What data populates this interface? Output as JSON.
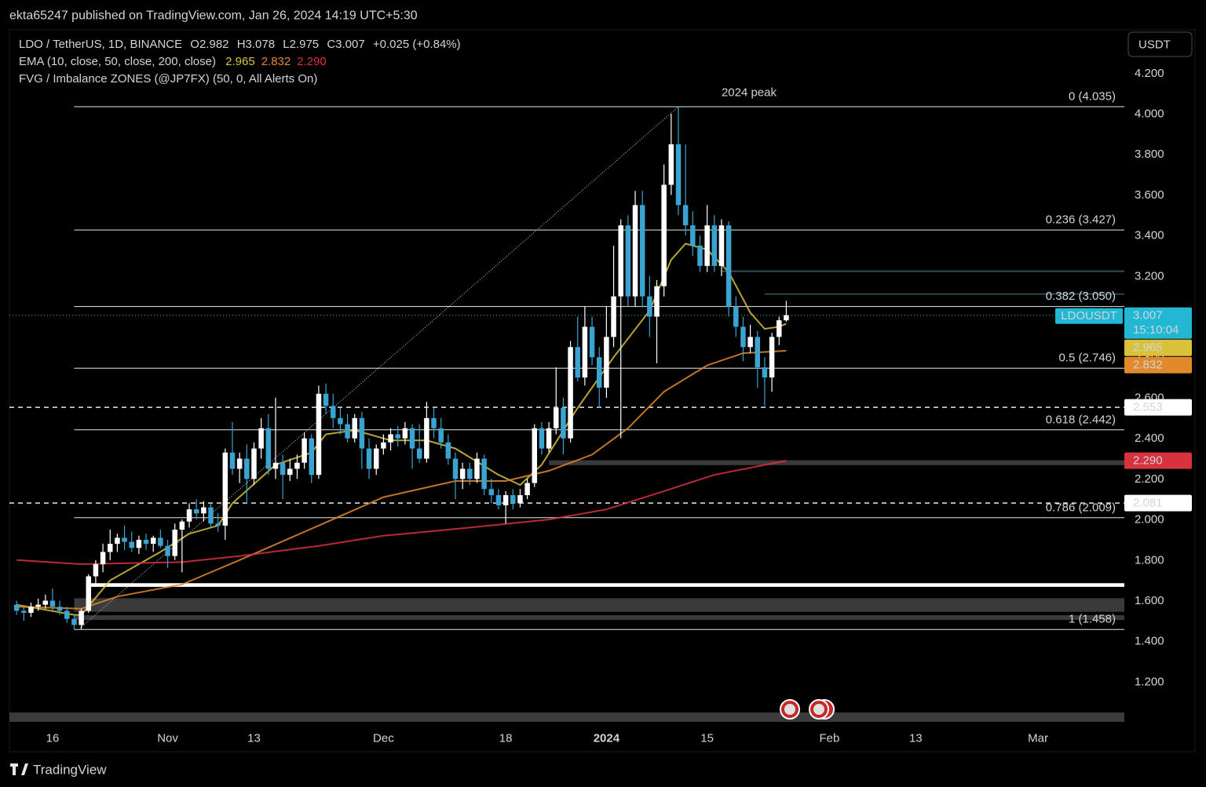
{
  "page": {
    "published": "ekta65247 published on TradingView.com, Jan 26, 2024 14:19 UTC+5:30",
    "currency": "USDT",
    "brand": "TradingView"
  },
  "chart_data": {
    "type": "candlestick",
    "title": "LDO / TetherUS, 1D, BINANCE",
    "ohlc_letters": [
      "O",
      "H",
      "L",
      "C"
    ],
    "change": "+0.025 (+0.84%)",
    "indicators": [
      "EMA (10, close, 50, close, 200, close)",
      "FVG / Imbalance ZONES (@JP7FX) (50, 0, All Alerts On)"
    ],
    "symbol_label": "LDOUSDT",
    "countdown": "15:10:04",
    "up_color": "#ffffff",
    "down_color": "#3ba3d0",
    "price_line_color": "#22b8d4",
    "xlim": [
      "2023-10-10",
      "2024-03-13"
    ],
    "ylim": [
      0.983,
      4.414
    ],
    "grid": false,
    "xticks": [
      {
        "value": "2023-10-16",
        "label": "16"
      },
      {
        "value": "2023-11-01",
        "label": "Nov"
      },
      {
        "value": "2023-11-13",
        "label": "13"
      },
      {
        "value": "2023-12-01",
        "label": "Dec"
      },
      {
        "value": "2023-12-18",
        "label": "18"
      },
      {
        "value": "2024-01-01",
        "label": "2024"
      },
      {
        "value": "2024-01-15",
        "label": "15"
      },
      {
        "value": "2024-02-01",
        "label": "Feb"
      },
      {
        "value": "2024-02-13",
        "label": "13"
      },
      {
        "value": "2024-03-01",
        "label": "Mar"
      }
    ],
    "yticks": [
      {
        "value": 1.2,
        "label": "1.200"
      },
      {
        "value": 1.4,
        "label": "1.400"
      },
      {
        "value": 1.6,
        "label": "1.600"
      },
      {
        "value": 1.8,
        "label": "1.800"
      },
      {
        "value": 2.0,
        "label": "2.000"
      },
      {
        "value": 2.2,
        "label": "2.200"
      },
      {
        "value": 2.4,
        "label": "2.400"
      },
      {
        "value": 2.6,
        "label": "2.600"
      },
      {
        "value": 2.8,
        "label": "2.800"
      },
      {
        "value": 3.0,
        "label": "3.000"
      },
      {
        "value": 3.2,
        "label": "3.200"
      },
      {
        "value": 3.4,
        "label": "3.400"
      },
      {
        "value": 3.6,
        "label": "3.600"
      },
      {
        "value": 3.8,
        "label": "3.800"
      },
      {
        "value": 4.0,
        "label": "4.000"
      },
      {
        "value": 4.2,
        "label": "4.200"
      }
    ],
    "x": [
      "2023-10-11",
      "2023-10-12",
      "2023-10-13",
      "2023-10-14",
      "2023-10-15",
      "2023-10-16",
      "2023-10-17",
      "2023-10-18",
      "2023-10-19",
      "2023-10-20",
      "2023-10-21",
      "2023-10-22",
      "2023-10-23",
      "2023-10-24",
      "2023-10-25",
      "2023-10-26",
      "2023-10-27",
      "2023-10-28",
      "2023-10-29",
      "2023-10-30",
      "2023-10-31",
      "2023-11-01",
      "2023-11-02",
      "2023-11-03",
      "2023-11-04",
      "2023-11-05",
      "2023-11-06",
      "2023-11-07",
      "2023-11-08",
      "2023-11-09",
      "2023-11-10",
      "2023-11-11",
      "2023-11-12",
      "2023-11-13",
      "2023-11-14",
      "2023-11-15",
      "2023-11-16",
      "2023-11-17",
      "2023-11-18",
      "2023-11-19",
      "2023-11-20",
      "2023-11-21",
      "2023-11-22",
      "2023-11-23",
      "2023-11-24",
      "2023-11-25",
      "2023-11-26",
      "2023-11-27",
      "2023-11-28",
      "2023-11-29",
      "2023-11-30",
      "2023-12-01",
      "2023-12-02",
      "2023-12-03",
      "2023-12-04",
      "2023-12-05",
      "2023-12-06",
      "2023-12-07",
      "2023-12-08",
      "2023-12-09",
      "2023-12-10",
      "2023-12-11",
      "2023-12-12",
      "2023-12-13",
      "2023-12-14",
      "2023-12-15",
      "2023-12-16",
      "2023-12-17",
      "2023-12-18",
      "2023-12-19",
      "2023-12-20",
      "2023-12-21",
      "2023-12-22",
      "2023-12-23",
      "2023-12-24",
      "2023-12-25",
      "2023-12-26",
      "2023-12-27",
      "2023-12-28",
      "2023-12-29",
      "2023-12-30",
      "2023-12-31",
      "2024-01-01",
      "2024-01-02",
      "2024-01-03",
      "2024-01-04",
      "2024-01-05",
      "2024-01-06",
      "2024-01-07",
      "2024-01-08",
      "2024-01-09",
      "2024-01-10",
      "2024-01-11",
      "2024-01-12",
      "2024-01-13",
      "2024-01-14",
      "2024-01-15",
      "2024-01-16",
      "2024-01-17",
      "2024-01-18",
      "2024-01-19",
      "2024-01-20",
      "2024-01-21",
      "2024-01-22",
      "2024-01-23",
      "2024-01-24",
      "2024-01-25",
      "2024-01-26"
    ],
    "open": [
      1.58,
      1.55,
      1.54,
      1.57,
      1.58,
      1.6,
      1.57,
      1.55,
      1.51,
      1.48,
      1.55,
      1.72,
      1.78,
      1.84,
      1.88,
      1.91,
      1.89,
      1.86,
      1.9,
      1.88,
      1.91,
      1.87,
      1.82,
      1.95,
      1.99,
      2.05,
      2.03,
      2.06,
      1.98,
      1.97,
      2.33,
      2.25,
      2.3,
      2.2,
      2.35,
      2.45,
      2.25,
      2.28,
      2.22,
      2.25,
      2.28,
      2.4,
      2.22,
      2.62,
      2.56,
      2.5,
      2.47,
      2.4,
      2.5,
      2.35,
      2.25,
      2.35,
      2.38,
      2.42,
      2.4,
      2.45,
      2.35,
      2.3,
      2.5,
      2.45,
      2.38,
      2.3,
      2.2,
      2.25,
      2.2,
      2.3,
      2.15,
      2.12,
      2.07,
      2.12,
      2.08,
      2.12,
      2.18,
      2.45,
      2.35,
      2.45,
      2.55,
      2.4,
      2.85,
      2.7,
      2.95,
      2.8,
      2.65,
      2.9,
      3.1,
      3.45,
      3.1,
      3.55,
      3.1,
      3.0,
      3.15,
      3.65,
      3.85,
      3.55,
      3.45,
      3.35,
      3.25,
      3.45,
      3.25,
      3.45,
      3.05,
      2.95,
      2.85,
      2.9,
      2.75,
      2.7,
      2.9,
      2.982
    ],
    "high": [
      1.6,
      1.57,
      1.59,
      1.61,
      1.63,
      1.66,
      1.6,
      1.57,
      1.53,
      1.56,
      1.73,
      1.8,
      1.88,
      1.95,
      1.93,
      1.97,
      1.94,
      1.92,
      1.93,
      1.92,
      1.95,
      1.9,
      1.98,
      2.0,
      2.08,
      2.1,
      2.09,
      2.08,
      2.03,
      2.35,
      2.48,
      2.33,
      2.37,
      2.38,
      2.5,
      2.52,
      2.6,
      2.32,
      2.3,
      2.32,
      2.43,
      2.42,
      2.66,
      2.67,
      2.62,
      2.55,
      2.52,
      2.52,
      2.53,
      2.4,
      2.37,
      2.42,
      2.45,
      2.46,
      2.48,
      2.47,
      2.47,
      2.58,
      2.55,
      2.5,
      2.42,
      2.33,
      2.28,
      2.28,
      2.33,
      2.32,
      2.2,
      2.15,
      2.14,
      2.15,
      2.15,
      2.2,
      2.47,
      2.48,
      2.48,
      2.75,
      2.6,
      2.88,
      3.0,
      3.05,
      3.0,
      2.85,
      3.05,
      3.35,
      3.48,
      3.5,
      3.62,
      3.62,
      3.2,
      3.18,
      3.75,
      4.0,
      4.035,
      3.85,
      3.52,
      3.4,
      3.55,
      3.5,
      3.48,
      3.47,
      3.1,
      3.0,
      2.96,
      2.93,
      2.8,
      2.92,
      3.0,
      3.078
    ],
    "low": [
      1.53,
      1.5,
      1.52,
      1.55,
      1.56,
      1.55,
      1.53,
      1.49,
      1.458,
      1.46,
      1.54,
      1.68,
      1.74,
      1.8,
      1.84,
      1.85,
      1.84,
      1.83,
      1.85,
      1.84,
      1.86,
      1.76,
      1.8,
      1.74,
      1.96,
      2.0,
      1.99,
      1.96,
      1.94,
      1.9,
      2.22,
      2.18,
      2.08,
      2.17,
      2.3,
      2.22,
      2.2,
      2.1,
      2.19,
      2.2,
      2.25,
      2.18,
      2.2,
      2.52,
      2.45,
      2.42,
      2.38,
      2.38,
      2.25,
      2.2,
      2.22,
      2.32,
      2.34,
      2.36,
      2.37,
      2.25,
      2.28,
      2.28,
      2.4,
      2.35,
      2.27,
      2.1,
      2.15,
      2.17,
      2.18,
      2.12,
      2.08,
      2.05,
      1.98,
      2.05,
      2.06,
      2.1,
      2.16,
      2.32,
      2.33,
      2.42,
      2.32,
      2.38,
      2.68,
      2.66,
      2.76,
      2.55,
      2.6,
      2.85,
      2.4,
      3.05,
      3.05,
      3.05,
      2.9,
      2.77,
      3.1,
      3.6,
      3.5,
      3.4,
      3.3,
      3.22,
      3.22,
      3.22,
      3.2,
      3.0,
      2.9,
      2.78,
      2.82,
      2.65,
      2.56,
      2.63,
      2.86,
      2.975
    ],
    "close": [
      1.55,
      1.54,
      1.57,
      1.58,
      1.6,
      1.57,
      1.55,
      1.51,
      1.48,
      1.55,
      1.72,
      1.78,
      1.84,
      1.88,
      1.91,
      1.89,
      1.86,
      1.9,
      1.88,
      1.91,
      1.87,
      1.82,
      1.95,
      1.99,
      2.05,
      2.03,
      2.06,
      1.98,
      1.97,
      2.33,
      2.25,
      2.3,
      2.2,
      2.35,
      2.45,
      2.25,
      2.28,
      2.22,
      2.25,
      2.28,
      2.4,
      2.22,
      2.62,
      2.56,
      2.5,
      2.47,
      2.4,
      2.5,
      2.35,
      2.25,
      2.35,
      2.38,
      2.42,
      2.4,
      2.45,
      2.35,
      2.3,
      2.5,
      2.45,
      2.38,
      2.3,
      2.2,
      2.25,
      2.2,
      2.3,
      2.15,
      2.12,
      2.07,
      2.12,
      2.08,
      2.12,
      2.18,
      2.45,
      2.35,
      2.45,
      2.55,
      2.4,
      2.85,
      2.7,
      2.95,
      2.8,
      2.65,
      2.9,
      3.1,
      3.45,
      3.1,
      3.55,
      3.1,
      3.0,
      3.15,
      3.65,
      3.85,
      3.55,
      3.45,
      3.35,
      3.25,
      3.45,
      3.25,
      3.45,
      3.05,
      2.95,
      2.85,
      2.9,
      2.75,
      2.7,
      2.9,
      2.982,
      3.007
    ],
    "series": [
      {
        "color": "#d9c23a",
        "x": [
          "2023-10-11",
          "2023-10-19",
          "2023-10-20",
          "2023-10-24",
          "2023-10-31",
          "2023-11-04",
          "2023-11-08",
          "2023-11-10",
          "2023-11-16",
          "2023-11-21",
          "2023-11-23",
          "2023-11-27",
          "2023-12-02",
          "2023-12-07",
          "2023-12-11",
          "2023-12-17",
          "2023-12-20",
          "2023-12-23",
          "2023-12-28",
          "2024-01-02",
          "2024-01-07",
          "2024-01-10",
          "2024-01-12",
          "2024-01-15",
          "2024-01-18",
          "2024-01-21",
          "2024-01-23",
          "2024-01-25",
          "2024-01-26"
        ],
        "values": [
          1.58,
          1.53,
          1.53,
          1.7,
          1.84,
          1.93,
          1.97,
          2.08,
          2.27,
          2.33,
          2.42,
          2.44,
          2.39,
          2.39,
          2.35,
          2.22,
          2.17,
          2.27,
          2.55,
          2.8,
          3.03,
          3.28,
          3.36,
          3.33,
          3.22,
          3.02,
          2.94,
          2.95,
          2.965
        ]
      },
      {
        "color": "#e08a2c",
        "x": [
          "2023-10-11",
          "2023-10-20",
          "2023-10-25",
          "2023-11-03",
          "2023-11-11",
          "2023-11-22",
          "2023-12-01",
          "2023-12-11",
          "2023-12-18",
          "2023-12-24",
          "2023-12-30",
          "2024-01-04",
          "2024-01-09",
          "2024-01-15",
          "2024-01-20",
          "2024-01-26"
        ],
        "values": [
          1.57,
          1.56,
          1.62,
          1.68,
          1.8,
          1.97,
          2.11,
          2.19,
          2.19,
          2.24,
          2.32,
          2.45,
          2.63,
          2.76,
          2.82,
          2.832
        ]
      },
      {
        "color": "#d8323e",
        "x": [
          "2023-10-11",
          "2023-10-20",
          "2023-11-03",
          "2023-11-11",
          "2023-11-22",
          "2023-12-01",
          "2023-12-13",
          "2023-12-24",
          "2024-01-01",
          "2024-01-09",
          "2024-01-16",
          "2024-01-26"
        ],
        "values": [
          1.8,
          1.78,
          1.79,
          1.82,
          1.87,
          1.92,
          1.96,
          2.0,
          2.05,
          2.14,
          2.22,
          2.29
        ],
        "value_labels": [
          null,
          null,
          null,
          null,
          null,
          null,
          null,
          null,
          null,
          null,
          null,
          "2.290"
        ]
      }
    ],
    "fib_start": "2023-10-19",
    "fib_end": "2024-01-11",
    "fib_levels": [
      {
        "value": 4.035,
        "label": "0 (4.035)"
      },
      {
        "value": 3.427,
        "label": "0.236 (3.427)"
      },
      {
        "value": 3.05,
        "label": "0.382 (3.050)"
      },
      {
        "value": 2.746,
        "label": "0.5 (2.746)"
      },
      {
        "value": 2.442,
        "label": "0.618 (2.442)"
      },
      {
        "value": 2.009,
        "label": "0.786 (2.009)"
      },
      {
        "value": 1.458,
        "label": "1 (1.458)"
      }
    ],
    "annotation": "2024 peak",
    "dashed_levels": [
      2.553,
      2.081
    ],
    "zones": [
      {
        "low": 1.668,
        "high": 1.686,
        "start": "2023-10-21",
        "color": "#ffffff"
      },
      {
        "low": 1.545,
        "high": 1.612,
        "start": "2023-10-19",
        "color": "#3a3a3a"
      },
      {
        "low": 1.505,
        "high": 1.528,
        "start": "2023-10-19",
        "color": "#3a3a3a"
      },
      {
        "low": 2.268,
        "high": 2.292,
        "start": "2023-12-24",
        "color": "#3a3a3a"
      },
      {
        "low": 3.22,
        "high": 3.228,
        "start": "2024-01-17",
        "color": "#2f4c55"
      },
      {
        "low": 3.108,
        "high": 3.115,
        "start": "2024-01-23",
        "color": "#2f4c55"
      }
    ]
  }
}
